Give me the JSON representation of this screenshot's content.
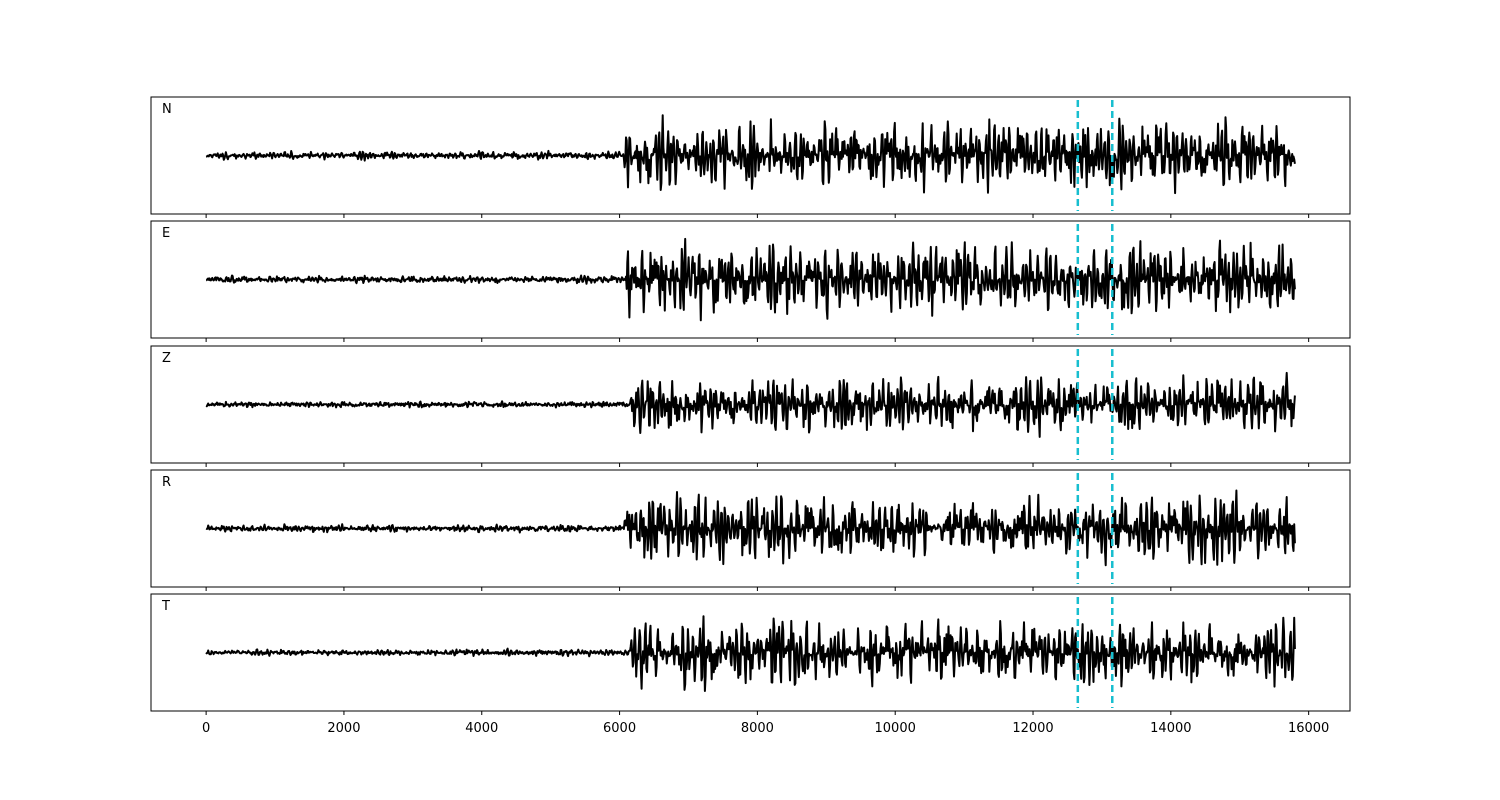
{
  "chart_data": {
    "type": "line",
    "title": "",
    "xlabel": "",
    "ylabel": "",
    "xlim": [
      -800,
      16600
    ],
    "n_samples": 15800,
    "line_color": "#000000",
    "marker_color": "#17becf",
    "markers_x": [
      12650,
      13150
    ],
    "x_ticks": [
      0,
      2000,
      4000,
      6000,
      8000,
      10000,
      12000,
      14000,
      16000
    ],
    "x_tick_labels": [
      "0",
      "2000",
      "4000",
      "6000",
      "8000",
      "10000",
      "12000",
      "14000",
      "16000"
    ],
    "grid": false,
    "panels": [
      {
        "label": "N",
        "onset_x": 6050,
        "noise_amp": 0.09,
        "signal_amp": 0.8,
        "seed": 11
      },
      {
        "label": "E",
        "onset_x": 6100,
        "noise_amp": 0.08,
        "signal_amp": 0.85,
        "seed": 23
      },
      {
        "label": "Z",
        "onset_x": 6150,
        "noise_amp": 0.06,
        "signal_amp": 0.7,
        "seed": 37
      },
      {
        "label": "R",
        "onset_x": 6050,
        "noise_amp": 0.08,
        "signal_amp": 0.82,
        "seed": 41
      },
      {
        "label": "T",
        "onset_x": 6150,
        "noise_amp": 0.07,
        "signal_amp": 0.8,
        "seed": 53
      }
    ]
  }
}
